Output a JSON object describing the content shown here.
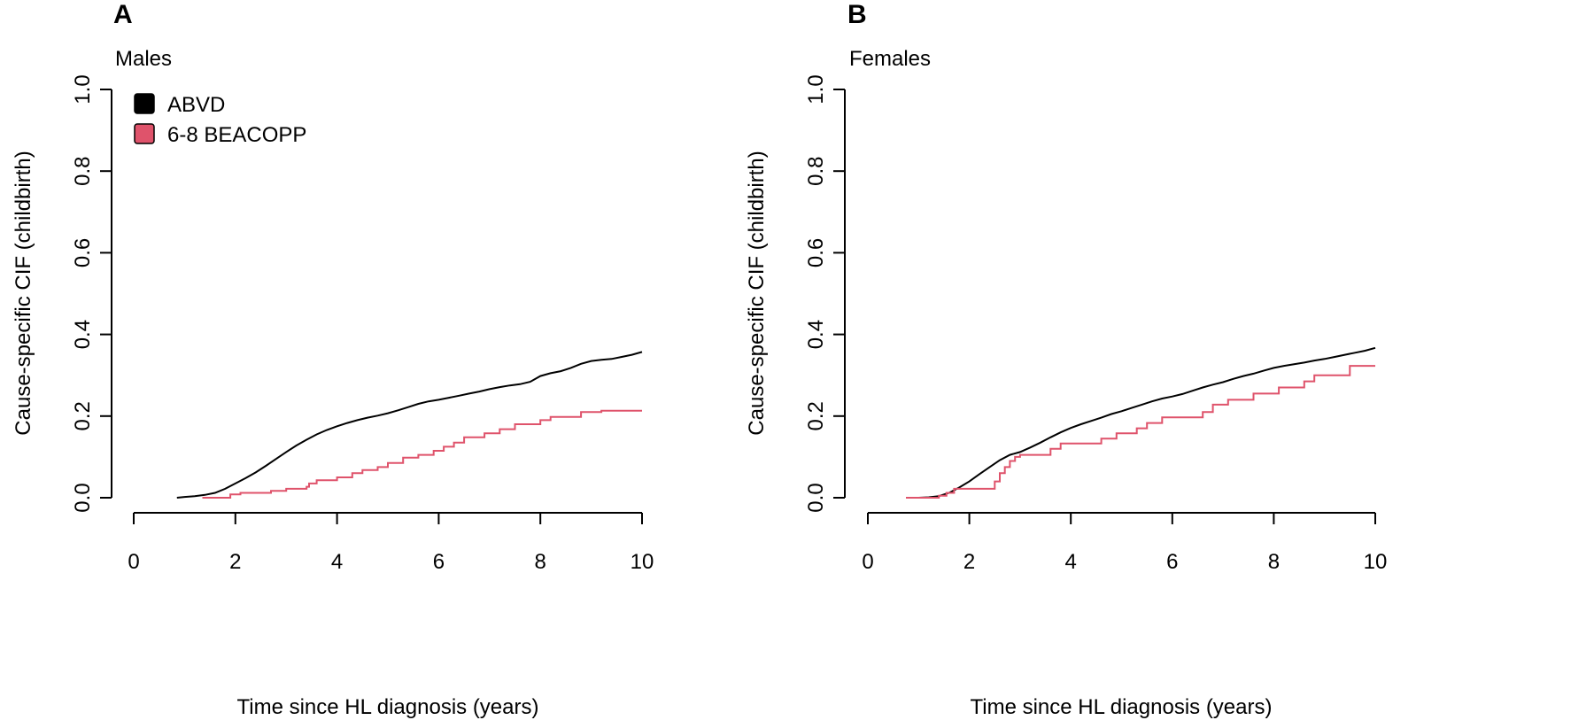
{
  "chart_data": [
    {
      "type": "line",
      "panel_label": "A",
      "title": "Males",
      "xlabel": "Time since HL diagnosis (years)",
      "ylabel": "Cause-specific CIF (childbirth)",
      "xlim": [
        0,
        10
      ],
      "ylim": [
        0,
        1
      ],
      "x_ticks": [
        "0",
        "2",
        "4",
        "6",
        "8",
        "10"
      ],
      "y_ticks": [
        "0.0",
        "0.2",
        "0.4",
        "0.6",
        "0.8",
        "1.0"
      ],
      "grid": false,
      "step": true,
      "legend": {
        "placement": "top-left",
        "entries": [
          {
            "label": "ABVD",
            "color": "#000000"
          },
          {
            "label": "6-8 BEACOPP",
            "color": "#DF536B"
          }
        ]
      },
      "series": [
        {
          "name": "ABVD",
          "color": "#000000",
          "points": [
            [
              0.85,
              0.0
            ],
            [
              1.0,
              0.002
            ],
            [
              1.2,
              0.004
            ],
            [
              1.4,
              0.007
            ],
            [
              1.6,
              0.012
            ],
            [
              1.8,
              0.022
            ],
            [
              2.0,
              0.035
            ],
            [
              2.2,
              0.048
            ],
            [
              2.4,
              0.062
            ],
            [
              2.6,
              0.078
            ],
            [
              2.8,
              0.095
            ],
            [
              3.0,
              0.112
            ],
            [
              3.2,
              0.128
            ],
            [
              3.4,
              0.142
            ],
            [
              3.6,
              0.155
            ],
            [
              3.8,
              0.166
            ],
            [
              4.0,
              0.175
            ],
            [
              4.2,
              0.183
            ],
            [
              4.4,
              0.19
            ],
            [
              4.6,
              0.196
            ],
            [
              4.8,
              0.201
            ],
            [
              5.0,
              0.207
            ],
            [
              5.2,
              0.214
            ],
            [
              5.4,
              0.222
            ],
            [
              5.6,
              0.23
            ],
            [
              5.8,
              0.236
            ],
            [
              6.0,
              0.24
            ],
            [
              6.2,
              0.245
            ],
            [
              6.4,
              0.25
            ],
            [
              6.6,
              0.255
            ],
            [
              6.8,
              0.26
            ],
            [
              7.0,
              0.266
            ],
            [
              7.2,
              0.271
            ],
            [
              7.4,
              0.275
            ],
            [
              7.6,
              0.278
            ],
            [
              7.8,
              0.284
            ],
            [
              8.0,
              0.298
            ],
            [
              8.2,
              0.305
            ],
            [
              8.4,
              0.31
            ],
            [
              8.6,
              0.318
            ],
            [
              8.8,
              0.328
            ],
            [
              9.0,
              0.335
            ],
            [
              9.2,
              0.338
            ],
            [
              9.4,
              0.34
            ],
            [
              9.6,
              0.345
            ],
            [
              9.8,
              0.35
            ],
            [
              10.0,
              0.357
            ]
          ]
        },
        {
          "name": "6-8 BEACOPP",
          "color": "#DF536B",
          "points": [
            [
              1.35,
              0.0
            ],
            [
              1.9,
              0.0
            ],
            [
              1.9,
              0.008
            ],
            [
              2.1,
              0.008
            ],
            [
              2.1,
              0.012
            ],
            [
              2.7,
              0.012
            ],
            [
              2.7,
              0.017
            ],
            [
              3.0,
              0.017
            ],
            [
              3.0,
              0.022
            ],
            [
              3.4,
              0.022
            ],
            [
              3.4,
              0.027
            ],
            [
              3.45,
              0.027
            ],
            [
              3.45,
              0.035
            ],
            [
              3.6,
              0.035
            ],
            [
              3.6,
              0.043
            ],
            [
              4.0,
              0.043
            ],
            [
              4.0,
              0.05
            ],
            [
              4.3,
              0.05
            ],
            [
              4.3,
              0.06
            ],
            [
              4.5,
              0.06
            ],
            [
              4.5,
              0.068
            ],
            [
              4.8,
              0.068
            ],
            [
              4.8,
              0.075
            ],
            [
              5.0,
              0.075
            ],
            [
              5.0,
              0.085
            ],
            [
              5.3,
              0.085
            ],
            [
              5.3,
              0.098
            ],
            [
              5.6,
              0.098
            ],
            [
              5.6,
              0.105
            ],
            [
              5.9,
              0.105
            ],
            [
              5.9,
              0.115
            ],
            [
              6.1,
              0.115
            ],
            [
              6.1,
              0.125
            ],
            [
              6.3,
              0.125
            ],
            [
              6.3,
              0.135
            ],
            [
              6.5,
              0.135
            ],
            [
              6.5,
              0.148
            ],
            [
              6.9,
              0.148
            ],
            [
              6.9,
              0.158
            ],
            [
              7.2,
              0.158
            ],
            [
              7.2,
              0.168
            ],
            [
              7.5,
              0.168
            ],
            [
              7.5,
              0.18
            ],
            [
              8.0,
              0.18
            ],
            [
              8.0,
              0.19
            ],
            [
              8.2,
              0.19
            ],
            [
              8.2,
              0.198
            ],
            [
              8.8,
              0.198
            ],
            [
              8.8,
              0.21
            ],
            [
              9.2,
              0.21
            ],
            [
              9.2,
              0.213
            ],
            [
              10.0,
              0.213
            ]
          ]
        }
      ]
    },
    {
      "type": "line",
      "panel_label": "B",
      "title": "Females",
      "xlabel": "Time since HL diagnosis (years)",
      "ylabel": "Cause-specific CIF (childbirth)",
      "xlim": [
        0,
        10
      ],
      "ylim": [
        0,
        1
      ],
      "x_ticks": [
        "0",
        "2",
        "4",
        "6",
        "8",
        "10"
      ],
      "y_ticks": [
        "0.0",
        "0.2",
        "0.4",
        "0.6",
        "0.8",
        "1.0"
      ],
      "grid": false,
      "step": true,
      "series": [
        {
          "name": "ABVD",
          "color": "#000000",
          "points": [
            [
              0.75,
              0.0
            ],
            [
              1.0,
              0.0
            ],
            [
              1.2,
              0.001
            ],
            [
              1.4,
              0.004
            ],
            [
              1.6,
              0.012
            ],
            [
              1.8,
              0.025
            ],
            [
              2.0,
              0.04
            ],
            [
              2.2,
              0.058
            ],
            [
              2.4,
              0.075
            ],
            [
              2.6,
              0.092
            ],
            [
              2.8,
              0.105
            ],
            [
              3.0,
              0.112
            ],
            [
              3.2,
              0.123
            ],
            [
              3.4,
              0.135
            ],
            [
              3.6,
              0.148
            ],
            [
              3.8,
              0.16
            ],
            [
              4.0,
              0.171
            ],
            [
              4.2,
              0.18
            ],
            [
              4.4,
              0.188
            ],
            [
              4.6,
              0.196
            ],
            [
              4.8,
              0.205
            ],
            [
              5.0,
              0.212
            ],
            [
              5.2,
              0.22
            ],
            [
              5.4,
              0.228
            ],
            [
              5.6,
              0.236
            ],
            [
              5.8,
              0.243
            ],
            [
              6.0,
              0.248
            ],
            [
              6.2,
              0.254
            ],
            [
              6.4,
              0.262
            ],
            [
              6.6,
              0.27
            ],
            [
              6.8,
              0.277
            ],
            [
              7.0,
              0.283
            ],
            [
              7.2,
              0.291
            ],
            [
              7.4,
              0.298
            ],
            [
              7.6,
              0.304
            ],
            [
              7.8,
              0.311
            ],
            [
              8.0,
              0.318
            ],
            [
              8.2,
              0.323
            ],
            [
              8.4,
              0.327
            ],
            [
              8.6,
              0.331
            ],
            [
              8.8,
              0.336
            ],
            [
              9.0,
              0.34
            ],
            [
              9.2,
              0.345
            ],
            [
              9.4,
              0.35
            ],
            [
              9.6,
              0.355
            ],
            [
              9.8,
              0.36
            ],
            [
              10.0,
              0.367
            ]
          ]
        },
        {
          "name": "6-8 BEACOPP",
          "color": "#DF536B",
          "points": [
            [
              0.75,
              0.0
            ],
            [
              1.4,
              0.0
            ],
            [
              1.4,
              0.005
            ],
            [
              1.55,
              0.005
            ],
            [
              1.55,
              0.012
            ],
            [
              1.7,
              0.012
            ],
            [
              1.7,
              0.022
            ],
            [
              2.5,
              0.022
            ],
            [
              2.5,
              0.04
            ],
            [
              2.6,
              0.04
            ],
            [
              2.6,
              0.06
            ],
            [
              2.7,
              0.06
            ],
            [
              2.7,
              0.075
            ],
            [
              2.8,
              0.075
            ],
            [
              2.8,
              0.09
            ],
            [
              2.9,
              0.09
            ],
            [
              2.9,
              0.1
            ],
            [
              3.0,
              0.1
            ],
            [
              3.0,
              0.105
            ],
            [
              3.6,
              0.105
            ],
            [
              3.6,
              0.12
            ],
            [
              3.8,
              0.12
            ],
            [
              3.8,
              0.133
            ],
            [
              4.6,
              0.133
            ],
            [
              4.6,
              0.145
            ],
            [
              4.9,
              0.145
            ],
            [
              4.9,
              0.158
            ],
            [
              5.3,
              0.158
            ],
            [
              5.3,
              0.17
            ],
            [
              5.5,
              0.17
            ],
            [
              5.5,
              0.183
            ],
            [
              5.8,
              0.183
            ],
            [
              5.8,
              0.197
            ],
            [
              6.6,
              0.197
            ],
            [
              6.6,
              0.21
            ],
            [
              6.8,
              0.21
            ],
            [
              6.8,
              0.228
            ],
            [
              7.1,
              0.228
            ],
            [
              7.1,
              0.24
            ],
            [
              7.6,
              0.24
            ],
            [
              7.6,
              0.255
            ],
            [
              8.1,
              0.255
            ],
            [
              8.1,
              0.27
            ],
            [
              8.6,
              0.27
            ],
            [
              8.6,
              0.285
            ],
            [
              8.8,
              0.285
            ],
            [
              8.8,
              0.3
            ],
            [
              9.5,
              0.3
            ],
            [
              9.5,
              0.323
            ],
            [
              10.0,
              0.323
            ]
          ]
        }
      ]
    }
  ]
}
